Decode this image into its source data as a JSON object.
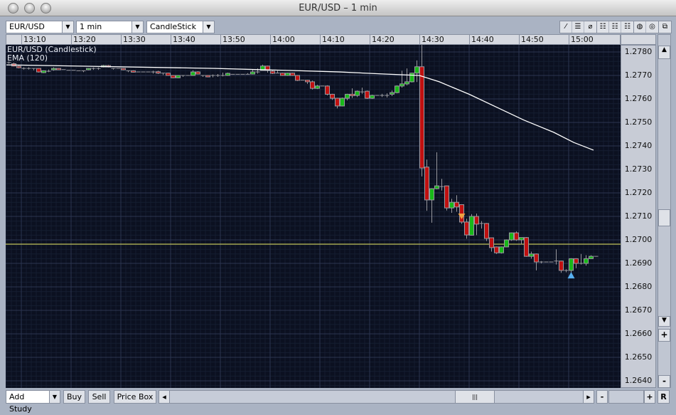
{
  "window": {
    "title": "EUR/USD – 1 min"
  },
  "toolbar": {
    "symbol": "EUR/USD",
    "interval": "1 min",
    "chart_type": "CandleStick",
    "tools": [
      {
        "icon": "line-tool-icon",
        "glyph": "⁄"
      },
      {
        "icon": "horizontal-line-tool-icon",
        "glyph": "☰"
      },
      {
        "icon": "no-draw-icon",
        "glyph": "⌀"
      },
      {
        "icon": "grid-solid-icon",
        "glyph": "☷"
      },
      {
        "icon": "grid-dashed-icon",
        "glyph": "☷"
      },
      {
        "icon": "grid-dotted-icon",
        "glyph": "☷"
      },
      {
        "icon": "color-scheme-dark-icon",
        "glyph": "◍"
      },
      {
        "icon": "color-scheme-pattern-icon",
        "glyph": "◎"
      }
    ],
    "detach_icon": "⧉"
  },
  "legend": {
    "series": "EUR/USD (Candlestick)",
    "study": "EMA (120)"
  },
  "bottom": {
    "add_study": "Add Study",
    "buy": "Buy",
    "sell": "Sell",
    "price_box": "Price Box",
    "zoom_out": "-",
    "zoom_in": "+",
    "reset": "R",
    "scroll_left": "◂",
    "scroll_right": "▸",
    "thumb": "|||"
  },
  "vscroll": {
    "up": "▲",
    "down": "▼",
    "plus": "+",
    "minus": "-"
  },
  "colors": {
    "bg": "#0b1020",
    "up": "#18b818",
    "down": "#c01010",
    "ema": "#ffffff",
    "level": "#e8e860",
    "sell_marker": "#f0a040",
    "buy_marker": "#58b0f0"
  },
  "chart_data": {
    "type": "candlestick",
    "xlim": [
      "13:07",
      "15:05"
    ],
    "ylim": [
      1.2637,
      1.2783
    ],
    "grid": true,
    "time_ticks": [
      "13:10",
      "13:20",
      "13:30",
      "13:40",
      "13:50",
      "14:00",
      "14:10",
      "14:20",
      "14:30",
      "14:40",
      "14:50",
      "15:00"
    ],
    "price_ticks": [
      "1.2780",
      "1.2770",
      "1.2760",
      "1.2750",
      "1.2740",
      "1.2730",
      "1.2720",
      "1.2710",
      "1.2700",
      "1.2690",
      "1.2680",
      "1.2670",
      "1.2660",
      "1.2650",
      "1.2640"
    ],
    "candles_format": [
      "time",
      "open",
      "high",
      "low",
      "close"
    ],
    "candles": [
      [
        "13:07",
        1.27755,
        1.2776,
        1.2775,
        1.27755
      ],
      [
        "13:08",
        1.2775,
        1.27755,
        1.27738,
        1.2774
      ],
      [
        "13:09",
        1.27739,
        1.27742,
        1.2773,
        1.27733
      ],
      [
        "13:10",
        1.2773,
        1.27735,
        1.27725,
        1.2773
      ],
      [
        "13:11",
        1.2773,
        1.27735,
        1.27725,
        1.2773
      ],
      [
        "13:12",
        1.2773,
        1.2773,
        1.27722,
        1.2773
      ],
      [
        "13:13",
        1.2773,
        1.27732,
        1.27712,
        1.27715
      ],
      [
        "13:14",
        1.27712,
        1.27722,
        1.2771,
        1.2772
      ],
      [
        "13:15",
        1.27718,
        1.27725,
        1.27714,
        1.27718
      ],
      [
        "13:16",
        1.27725,
        1.27735,
        1.2772,
        1.2773
      ],
      [
        "13:17",
        1.2773,
        1.27732,
        1.27724,
        1.27727
      ],
      [
        "13:18",
        1.27725,
        1.27725,
        1.27725,
        1.27725
      ],
      [
        "13:19",
        1.27722,
        1.27722,
        1.27722,
        1.27722
      ],
      [
        "13:20",
        1.27722,
        1.27722,
        1.27722,
        1.27722
      ],
      [
        "13:21",
        1.2772,
        1.2772,
        1.2772,
        1.2772
      ],
      [
        "13:22",
        1.2772,
        1.2772,
        1.27714,
        1.2772
      ],
      [
        "13:23",
        1.27725,
        1.27732,
        1.27722,
        1.2773
      ],
      [
        "13:24",
        1.2773,
        1.27734,
        1.27724,
        1.2773
      ],
      [
        "13:25",
        1.2773,
        1.27734,
        1.27724,
        1.2773
      ],
      [
        "13:26",
        1.27736,
        1.27745,
        1.27734,
        1.27742
      ],
      [
        "13:27",
        1.27742,
        1.27745,
        1.27734,
        1.27736
      ],
      [
        "13:28",
        1.2773,
        1.2773,
        1.27725,
        1.2773
      ],
      [
        "13:29",
        1.2773,
        1.2773,
        1.2773,
        1.2773
      ],
      [
        "13:30",
        1.2773,
        1.27732,
        1.27722,
        1.27724
      ],
      [
        "13:31",
        1.2772,
        1.2772,
        1.27714,
        1.2772
      ],
      [
        "13:32",
        1.2772,
        1.27722,
        1.27712,
        1.27715
      ],
      [
        "13:33",
        1.27715,
        1.27715,
        1.27715,
        1.27715
      ],
      [
        "13:34",
        1.27715,
        1.27715,
        1.27715,
        1.27715
      ],
      [
        "13:35",
        1.27715,
        1.27715,
        1.27715,
        1.27715
      ],
      [
        "13:36",
        1.27715,
        1.2772,
        1.27708,
        1.27715
      ],
      [
        "13:37",
        1.27716,
        1.2772,
        1.27706,
        1.2771
      ],
      [
        "13:38",
        1.2771,
        1.2771,
        1.27702,
        1.2771
      ],
      [
        "13:39",
        1.2771,
        1.27712,
        1.27698,
        1.277
      ],
      [
        "13:40",
        1.277,
        1.27702,
        1.27688,
        1.2769
      ],
      [
        "13:41",
        1.2769,
        1.27702,
        1.27688,
        1.277
      ],
      [
        "13:42",
        1.277,
        1.277,
        1.27694,
        1.277
      ],
      [
        "13:43",
        1.277,
        1.277,
        1.277,
        1.277
      ],
      [
        "13:44",
        1.277,
        1.27722,
        1.27698,
        1.27715
      ],
      [
        "13:45",
        1.27715,
        1.27718,
        1.27704,
        1.27706
      ],
      [
        "13:46",
        1.277,
        1.277,
        1.27694,
        1.277
      ],
      [
        "13:47",
        1.277,
        1.27702,
        1.27692,
        1.27695
      ],
      [
        "13:48",
        1.277,
        1.27704,
        1.27692,
        1.277
      ],
      [
        "13:49",
        1.277,
        1.27706,
        1.27694,
        1.277
      ],
      [
        "13:50",
        1.277,
        1.27712,
        1.27696,
        1.277
      ],
      [
        "13:51",
        1.277,
        1.27712,
        1.27698,
        1.27709
      ],
      [
        "13:52",
        1.27705,
        1.27705,
        1.27705,
        1.27705
      ],
      [
        "13:53",
        1.27705,
        1.27705,
        1.27705,
        1.27705
      ],
      [
        "13:54",
        1.27705,
        1.27705,
        1.27705,
        1.27705
      ],
      [
        "13:55",
        1.27705,
        1.2771,
        1.27705,
        1.27705
      ],
      [
        "13:56",
        1.27706,
        1.27724,
        1.27704,
        1.27715
      ],
      [
        "13:57",
        1.27715,
        1.2773,
        1.27708,
        1.27715
      ],
      [
        "13:58",
        1.27721,
        1.27746,
        1.2772,
        1.2774
      ],
      [
        "13:59",
        1.2774,
        1.27742,
        1.27712,
        1.27721
      ],
      [
        "14:00",
        1.27718,
        1.27722,
        1.27706,
        1.27709
      ],
      [
        "14:01",
        1.2771,
        1.2772,
        1.2771,
        1.2771
      ],
      [
        "14:02",
        1.2771,
        1.27712,
        1.27698,
        1.277
      ],
      [
        "14:03",
        1.277,
        1.27712,
        1.27698,
        1.2771
      ],
      [
        "14:04",
        1.2771,
        1.27712,
        1.27698,
        1.277
      ],
      [
        "14:05",
        1.277,
        1.27702,
        1.27676,
        1.27679
      ],
      [
        "14:06",
        1.2768,
        1.2768,
        1.2768,
        1.2768
      ],
      [
        "14:07",
        1.2768,
        1.27682,
        1.27664,
        1.27673
      ],
      [
        "14:08",
        1.27673,
        1.27678,
        1.2764,
        1.27645
      ],
      [
        "14:09",
        1.27645,
        1.2766,
        1.27642,
        1.27655
      ],
      [
        "14:10",
        1.27655,
        1.27655,
        1.27655,
        1.27655
      ],
      [
        "14:11",
        1.27655,
        1.27658,
        1.27615,
        1.2762
      ],
      [
        "14:12",
        1.2762,
        1.27622,
        1.27596,
        1.27603
      ],
      [
        "14:13",
        1.27603,
        1.27605,
        1.2756,
        1.2757
      ],
      [
        "14:14",
        1.2757,
        1.27606,
        1.27568,
        1.27603
      ],
      [
        "14:15",
        1.27603,
        1.27622,
        1.27594,
        1.2762
      ],
      [
        "14:16",
        1.2762,
        1.27645,
        1.27604,
        1.27615
      ],
      [
        "14:17",
        1.27615,
        1.27636,
        1.27608,
        1.27633
      ],
      [
        "14:18",
        1.2763,
        1.27648,
        1.27622,
        1.2763
      ],
      [
        "14:19",
        1.27633,
        1.27636,
        1.276,
        1.27603
      ],
      [
        "14:20",
        1.27603,
        1.27618,
        1.276,
        1.27615
      ],
      [
        "14:21",
        1.27615,
        1.27615,
        1.27615,
        1.27615
      ],
      [
        "14:22",
        1.27615,
        1.27622,
        1.27608,
        1.27615
      ],
      [
        "14:23",
        1.27615,
        1.27624,
        1.27606,
        1.27615
      ],
      [
        "14:24",
        1.2762,
        1.27636,
        1.27612,
        1.27627
      ],
      [
        "14:25",
        1.27627,
        1.27658,
        1.27624,
        1.27655
      ],
      [
        "14:26",
        1.27655,
        1.2772,
        1.27648,
        1.27664
      ],
      [
        "14:27",
        1.27664,
        1.2773,
        1.27658,
        1.27673
      ],
      [
        "14:28",
        1.27673,
        1.27712,
        1.2767,
        1.2771
      ],
      [
        "14:29",
        1.2771,
        1.27764,
        1.27672,
        1.27737
      ],
      [
        "14:30",
        1.27737,
        1.2783,
        1.2727,
        1.27306
      ],
      [
        "14:31",
        1.2731,
        1.27342,
        1.27124,
        1.2717
      ],
      [
        "14:32",
        1.2717,
        1.2722,
        1.27073,
        1.27218
      ],
      [
        "14:33",
        1.27218,
        1.27373,
        1.27215,
        1.2723
      ],
      [
        "14:34",
        1.27227,
        1.2726,
        1.2721,
        1.27227
      ],
      [
        "14:35",
        1.2723,
        1.27232,
        1.27125,
        1.27136
      ],
      [
        "14:36",
        1.27136,
        1.27175,
        1.27115,
        1.2716
      ],
      [
        "14:37",
        1.2716,
        1.2719,
        1.2712,
        1.2714
      ],
      [
        "14:38",
        1.2715,
        1.27152,
        1.27068,
        1.27076
      ],
      [
        "14:39",
        1.27076,
        1.2709,
        1.27005,
        1.27021
      ],
      [
        "14:40",
        1.2702,
        1.2711,
        1.27018,
        1.271
      ],
      [
        "14:41",
        1.271,
        1.27112,
        1.2702,
        1.27067
      ],
      [
        "14:42",
        1.2707,
        1.2708,
        1.27048,
        1.2707
      ],
      [
        "14:43",
        1.2707,
        1.27072,
        1.26995,
        1.27006
      ],
      [
        "14:44",
        1.27009,
        1.2701,
        1.2695,
        1.26967
      ],
      [
        "14:45",
        1.2697,
        1.26972,
        1.2694,
        1.26945
      ],
      [
        "14:46",
        1.26945,
        1.26972,
        1.26942,
        1.2697
      ],
      [
        "14:47",
        1.2697,
        1.27002,
        1.26968,
        1.27
      ],
      [
        "14:48",
        1.27,
        1.27032,
        1.26996,
        1.2703
      ],
      [
        "14:49",
        1.2703,
        1.27036,
        1.26996,
        1.27
      ],
      [
        "14:50",
        1.27,
        1.2701,
        1.2698,
        1.2701
      ],
      [
        "14:51",
        1.2701,
        1.27012,
        1.26928,
        1.2693
      ],
      [
        "14:52",
        1.2693,
        1.2695,
        1.2692,
        1.2694
      ],
      [
        "14:53",
        1.2694,
        1.26942,
        1.2687,
        1.26906
      ],
      [
        "14:54",
        1.26906,
        1.2691,
        1.269,
        1.26906
      ],
      [
        "14:55",
        1.26906,
        1.26906,
        1.26906,
        1.26906
      ],
      [
        "14:56",
        1.26906,
        1.26906,
        1.26906,
        1.26906
      ],
      [
        "14:57",
        1.2691,
        1.2696,
        1.26895,
        1.2691
      ],
      [
        "14:58",
        1.2691,
        1.26912,
        1.2686,
        1.2687
      ],
      [
        "14:59",
        1.2687,
        1.26875,
        1.26862,
        1.2687
      ],
      [
        "15:00",
        1.2687,
        1.26922,
        1.2685,
        1.2692
      ],
      [
        "15:01",
        1.2692,
        1.26922,
        1.2688,
        1.269
      ],
      [
        "15:02",
        1.269,
        1.2694,
        1.26895,
        1.269
      ],
      [
        "15:03",
        1.269,
        1.26935,
        1.2689,
        1.2692
      ],
      [
        "15:04",
        1.2692,
        1.26935,
        1.26918,
        1.2693
      ],
      [
        "15:05",
        1.2693,
        1.2693,
        1.2693,
        1.2693
      ]
    ],
    "ema": {
      "name": "EMA (120)",
      "points": [
        [
          "13:07",
          1.27745
        ],
        [
          "13:49",
          1.2773
        ],
        [
          "14:06",
          1.2772
        ],
        [
          "14:14",
          1.27715
        ],
        [
          "14:23",
          1.27706
        ],
        [
          "14:30",
          1.277
        ],
        [
          "14:34",
          1.27673
        ],
        [
          "14:40",
          1.2762
        ],
        [
          "14:46",
          1.2756
        ],
        [
          "14:51",
          1.2751
        ],
        [
          "14:57",
          1.27458
        ],
        [
          "15:01",
          1.27415
        ],
        [
          "15:05",
          1.27382
        ]
      ]
    },
    "level_line": 1.26982,
    "markers": [
      {
        "type": "sell",
        "time": "14:38",
        "price": 1.271
      },
      {
        "type": "buy",
        "time": "15:00",
        "price": 1.26848
      }
    ]
  }
}
